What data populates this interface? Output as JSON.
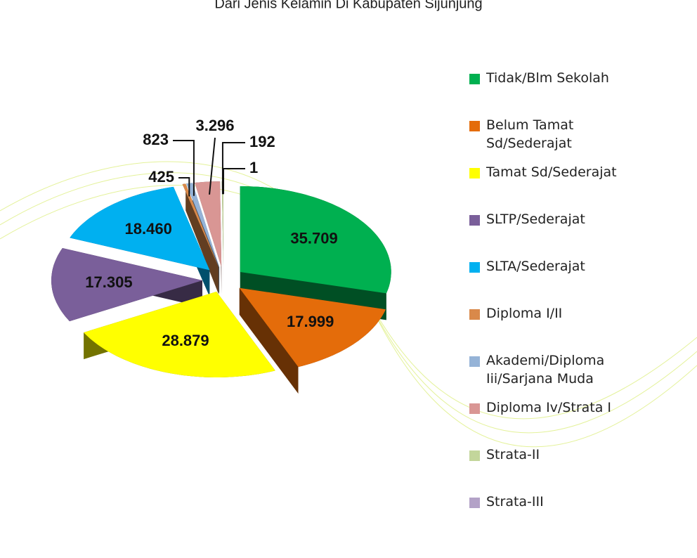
{
  "chart_data": {
    "type": "pie3d",
    "title": "Dari Jenis Kelamin Di Kabupaten Sijunjung",
    "categories": [
      "Tidak/Blm Sekolah",
      "Belum Tamat Sd/Sederajat",
      "Tamat Sd/Sederajat",
      "SLTP/Sederajat",
      "SLTA/Sederajat",
      "Diploma I/II",
      "Akademi/Diploma Iii/Sarjana Muda",
      "Diploma Iv/Strata I",
      "Strata-II",
      "Strata-III"
    ],
    "values": [
      35709,
      17999,
      28879,
      17305,
      18460,
      425,
      823,
      3296,
      192,
      1
    ],
    "value_labels": [
      "35.709",
      "17.999",
      "28.879",
      "17.305",
      "18.460",
      "425",
      "823",
      "3.296",
      "192",
      "1"
    ],
    "colors": [
      "#00b050",
      "#e46c0a",
      "#ffff00",
      "#7a5f9a",
      "#00b0f0",
      "#d9894a",
      "#95b3d7",
      "#d99694",
      "#c3d69b",
      "#b3a2c7"
    ],
    "legend": "right"
  }
}
